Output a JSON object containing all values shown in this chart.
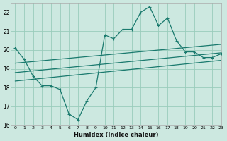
{
  "xlabel": "Humidex (Indice chaleur)",
  "background_color": "#cce8e0",
  "grid_color": "#99ccbb",
  "line_color": "#1a7a6e",
  "xlim": [
    -0.5,
    23
  ],
  "ylim": [
    16,
    22.5
  ],
  "yticks": [
    16,
    17,
    18,
    19,
    20,
    21,
    22
  ],
  "xticks": [
    0,
    1,
    2,
    3,
    4,
    5,
    6,
    7,
    8,
    9,
    10,
    11,
    12,
    13,
    14,
    15,
    16,
    17,
    18,
    19,
    20,
    21,
    22,
    23
  ],
  "main_line_x": [
    0,
    1,
    2,
    3,
    4,
    5,
    6,
    7,
    8,
    9,
    10,
    11,
    12,
    13,
    14,
    15,
    16,
    17,
    18,
    19,
    20,
    21,
    22,
    23
  ],
  "main_line_y": [
    20.1,
    19.5,
    18.6,
    18.1,
    18.1,
    17.9,
    16.6,
    16.3,
    17.3,
    18.0,
    20.8,
    20.6,
    21.1,
    21.1,
    22.0,
    22.3,
    21.3,
    21.7,
    20.5,
    19.9,
    19.9,
    19.6,
    19.6,
    19.8
  ],
  "line2_x": [
    0,
    23
  ],
  "line2_y": [
    19.3,
    20.3
  ],
  "line3_x": [
    0,
    23
  ],
  "line3_y": [
    18.8,
    19.85
  ],
  "line4_x": [
    0,
    23
  ],
  "line4_y": [
    18.35,
    19.45
  ]
}
